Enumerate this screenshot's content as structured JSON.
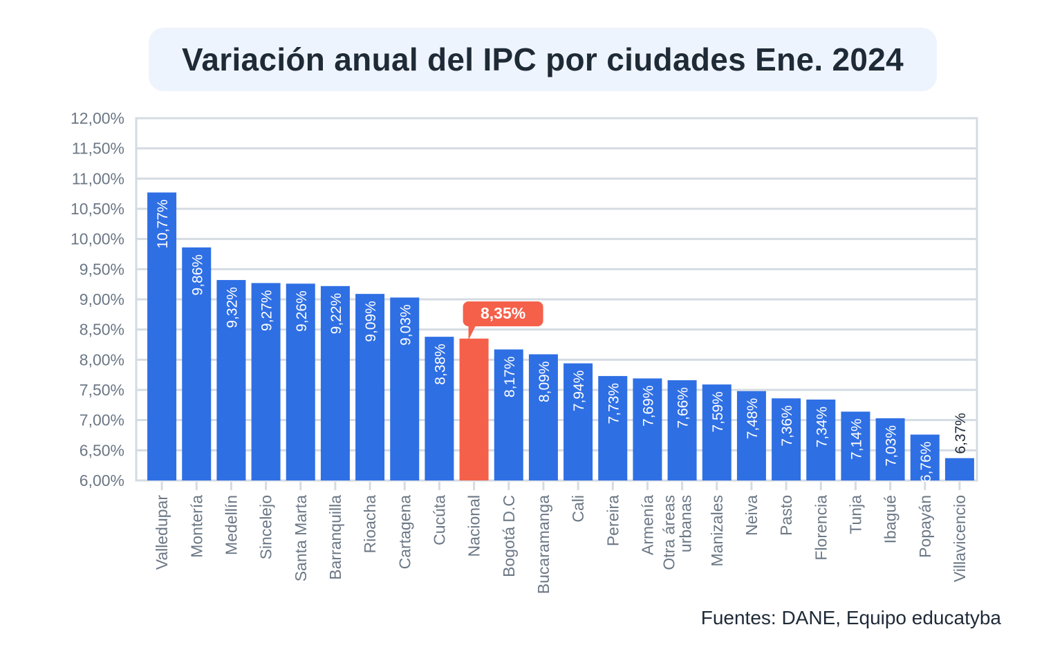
{
  "chart_data": {
    "type": "bar",
    "title": "Variación anual del IPC por ciudades Ene. 2024",
    "xlabel": "",
    "ylabel": "",
    "ylim": [
      6,
      12
    ],
    "yticks": [
      "6,00%",
      "6,50%",
      "7,00%",
      "7,50%",
      "8,00%",
      "8,50%",
      "9,00%",
      "9,50%",
      "10,00%",
      "10,50%",
      "11,00%",
      "11,50%",
      "12,00%"
    ],
    "grid": true,
    "categories": [
      "Valledupar",
      "Montería",
      "Medellín",
      "Sincelejo",
      "Santa Marta",
      "Barranquilla",
      "Rioacha",
      "Cartagena",
      "Cucúta",
      "Nacional",
      "Bogotá D.C",
      "Bucaramanga",
      "Cali",
      "Pereira",
      "Armenía",
      "Otra áreas urbanas",
      "Manizales",
      "Neiva",
      "Pasto",
      "Florencia",
      "Tunja",
      "Ibagué",
      "Popayán",
      "Villavicencio"
    ],
    "values": [
      10.77,
      9.86,
      9.32,
      9.27,
      9.26,
      9.22,
      9.09,
      9.03,
      8.38,
      8.35,
      8.17,
      8.09,
      7.94,
      7.73,
      7.69,
      7.66,
      7.59,
      7.48,
      7.36,
      7.34,
      7.14,
      7.03,
      6.76,
      6.37
    ],
    "data_labels": [
      "10,77%",
      "9,86%",
      "9,32%",
      "9,27%",
      "9,26%",
      "9,22%",
      "9,09%",
      "9,03%",
      "8,38%",
      "8,35%",
      "8,17%",
      "8,09%",
      "7,94%",
      "7,73%",
      "7,69%",
      "7,66%",
      "7,59%",
      "7,48%",
      "7,36%",
      "7,34%",
      "7,14%",
      "7,03%",
      "6,76%",
      "6,37%"
    ],
    "highlight": "Nacional",
    "colors": {
      "bar": "#2f6fe4",
      "highlight": "#f5604a",
      "grid": "#d5dbe2",
      "text": "#6b7785"
    }
  },
  "source": "Fuentes: DANE, Equipo educatyba"
}
